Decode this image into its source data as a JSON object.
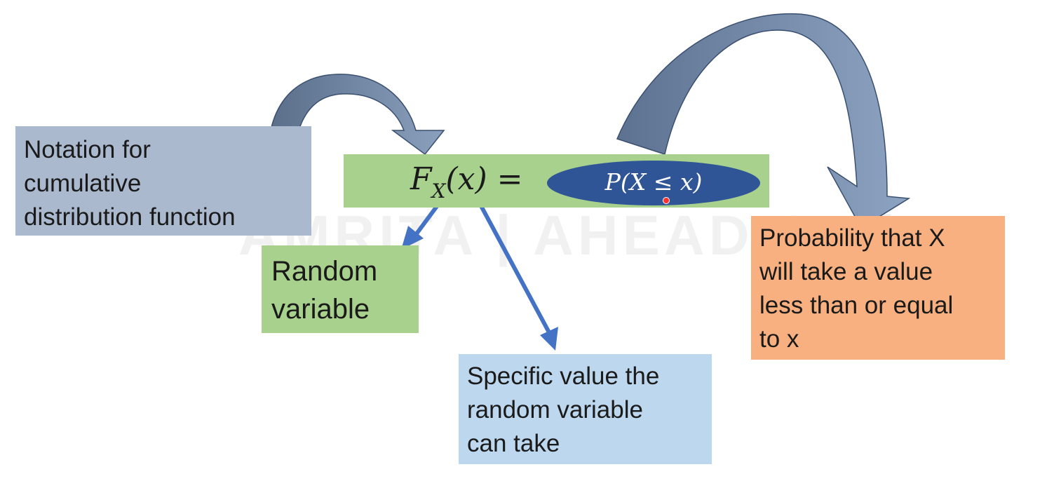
{
  "notation_box": {
    "lines": [
      "Notation for",
      "cumulative",
      "distribution function"
    ]
  },
  "formula": {
    "lhs": "F",
    "subscript": "X",
    "args": "(x) =",
    "rhs": "P(X ≤ x)"
  },
  "random_variable_box": {
    "lines": [
      "Random",
      "variable"
    ]
  },
  "specific_value_box": {
    "lines": [
      "Specific value the",
      "random variable",
      "can take"
    ]
  },
  "probability_box": {
    "lines": [
      "Probability that X",
      "will take a value",
      "less than or equal",
      "to x"
    ]
  },
  "watermark": "AMRITA | AHEAD Online",
  "colors": {
    "notation_box": "#abb9cf",
    "formula_bar": "#a9d18e",
    "oval": "#2f5597",
    "specific_box": "#bdd7ee",
    "probability_box": "#f8b080",
    "straight_arrow": "#4472c4",
    "curved_arrow": "#6f839e"
  }
}
